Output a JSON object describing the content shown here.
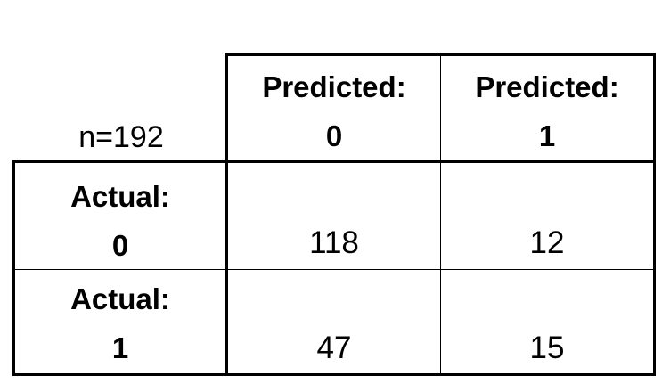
{
  "corner_label": "n=192",
  "header": {
    "predicted_0": {
      "line1": "Predicted:",
      "line2": "0"
    },
    "predicted_1": {
      "line1": "Predicted:",
      "line2": "1"
    }
  },
  "rows": [
    {
      "line1": "Actual:",
      "line2": "0",
      "cells": [
        "118",
        "12"
      ]
    },
    {
      "line1": "Actual:",
      "line2": "1",
      "cells": [
        "47",
        "15"
      ]
    }
  ],
  "chart_data": {
    "type": "table",
    "title": "",
    "n": 192,
    "columns": [
      "Predicted: 0",
      "Predicted: 1"
    ],
    "rows": [
      "Actual: 0",
      "Actual: 1"
    ],
    "values": [
      [
        118,
        12
      ],
      [
        47,
        15
      ]
    ]
  }
}
